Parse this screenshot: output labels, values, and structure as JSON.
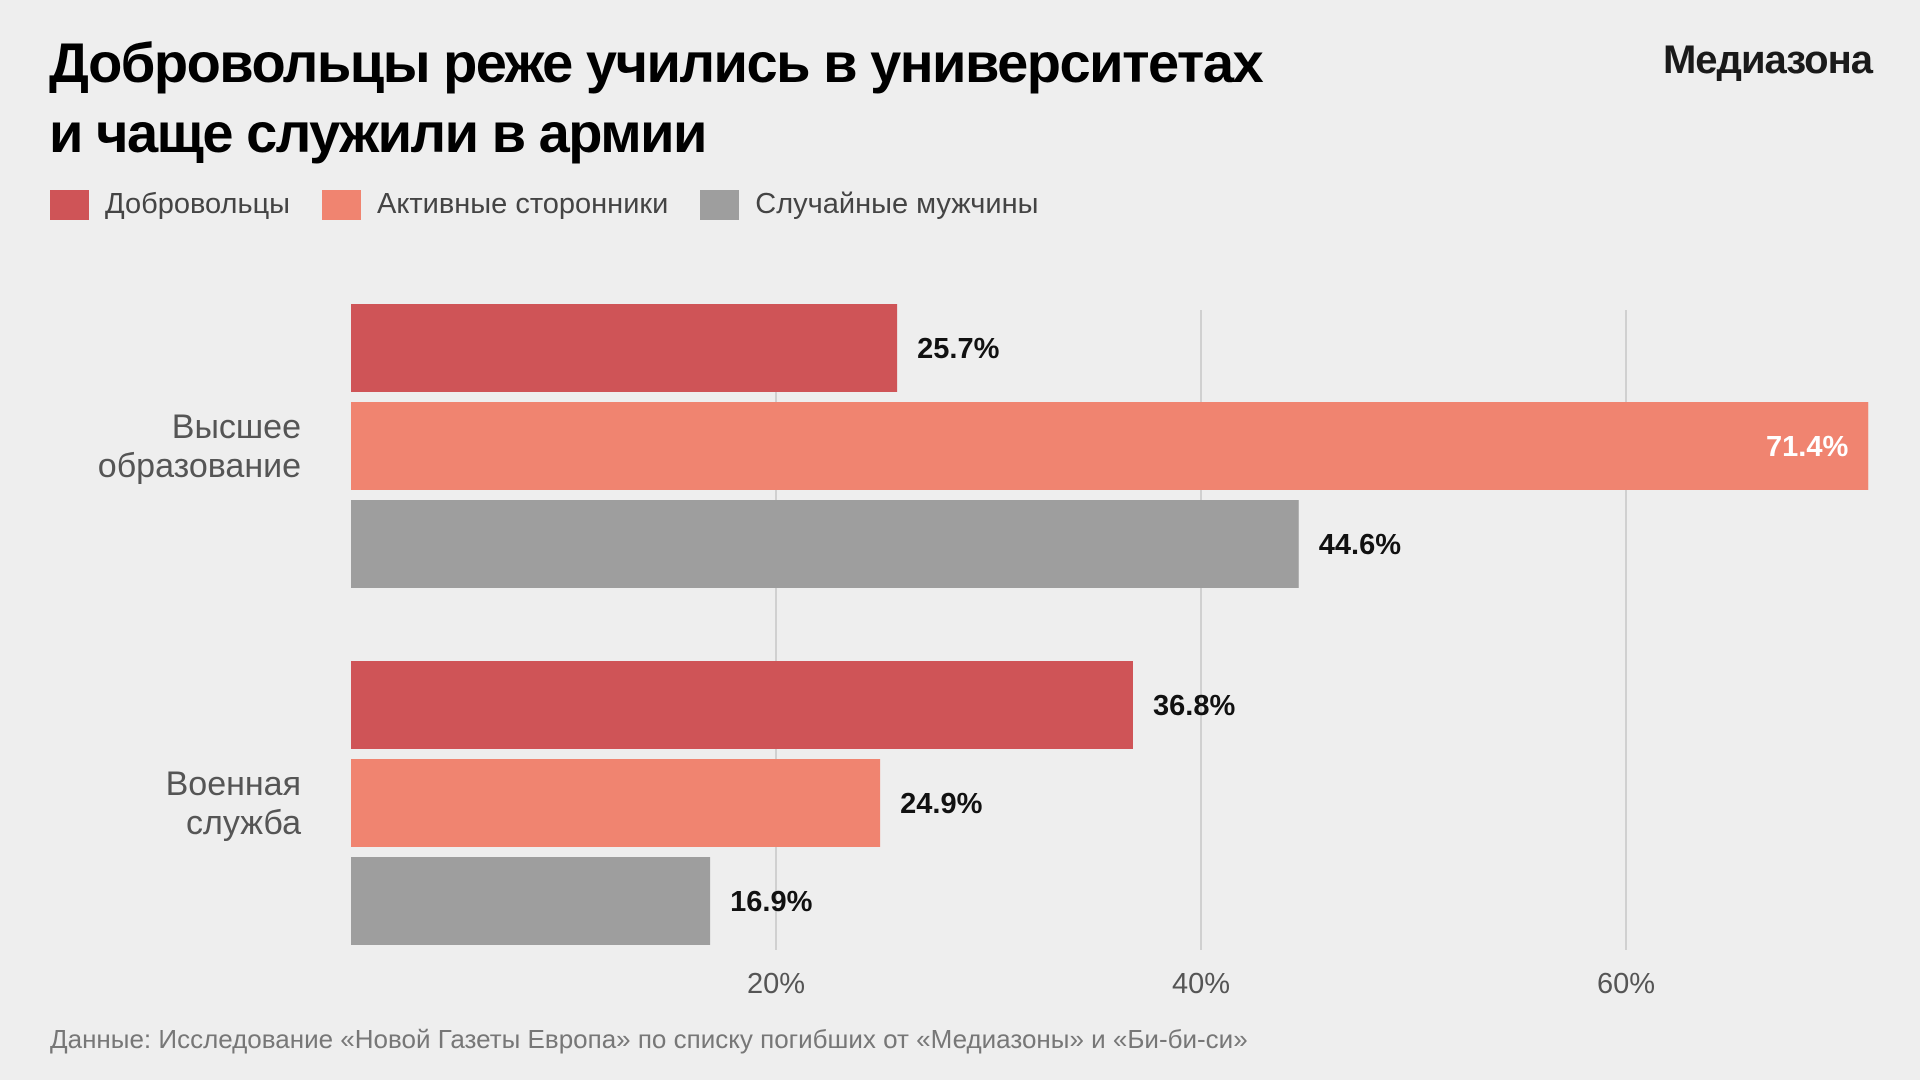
{
  "header": {
    "title_line1": "Добровольцы реже учились в университетах",
    "title_line2": "и чаще служили в армии",
    "logo": "Медиазона"
  },
  "footer": "Данные: Исследование «Новой Газеты Европа» по списку погибших от «Медиазоны» и «Би-би-си»",
  "chart_data": {
    "type": "bar",
    "orientation": "horizontal",
    "title": "Добровольцы реже учились в университетах и чаще служили в армии",
    "categories": [
      [
        "Высшее",
        "образование"
      ],
      [
        "Военная",
        "служба"
      ]
    ],
    "series": [
      {
        "name": "Добровольцы",
        "color": "#cf5457",
        "values": [
          25.7,
          36.8
        ],
        "labels": [
          "25.7%",
          "36.8%"
        ]
      },
      {
        "name": "Активные сторонники",
        "color": "#f08470",
        "values": [
          71.4,
          24.9
        ],
        "labels": [
          "71.4%",
          "24.9%"
        ]
      },
      {
        "name": "Случайные мужчины",
        "color": "#9e9e9e",
        "values": [
          44.6,
          16.9
        ],
        "labels": [
          "44.6%",
          "16.9%"
        ]
      }
    ],
    "xticks": [
      20,
      40,
      60
    ],
    "xtick_labels": [
      "20%",
      "40%",
      "60%"
    ],
    "xlim": [
      0,
      71.4
    ],
    "grid": true,
    "legend_position": "top-left"
  }
}
